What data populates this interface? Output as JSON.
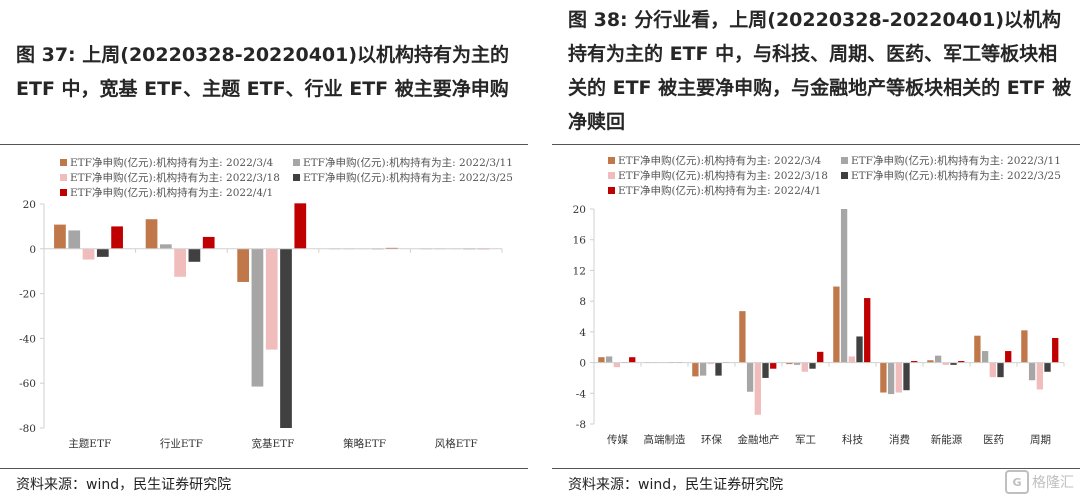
{
  "left": {
    "title": "图 37: 上周(20220328-20220401)以机构持有为主的 ETF 中，宽基 ETF、主题 ETF、行业 ETF 被主要净申购",
    "source": "资料来源：wind，民生证券研究院"
  },
  "right": {
    "title": "图 38: 分行业看，上周(20220328-20220401)以机构持有为主的 ETF 中，与科技、周期、医药、军工等板块相关的  ETF  被主要净申购，与金融地产等板块相关的 ETF 被净赎回",
    "source": "资料来源：wind，民生证券研究院"
  },
  "watermark": {
    "text": "格隆汇",
    "logo": "G"
  },
  "colors": {
    "s1": "#c0784a",
    "s2": "#a6a6a6",
    "s3": "#f0bcbc",
    "s4": "#404040",
    "s5": "#c00000",
    "axis": "#d0d0d0",
    "tick_text": "#333333"
  },
  "chart_data": [
    {
      "type": "bar",
      "categories": [
        "主题ETF",
        "行业ETF",
        "宽基ETF",
        "策略ETF",
        "风格ETF"
      ],
      "series": [
        {
          "name": "ETF净申购(亿元):机构持有为主: 2022/3/4",
          "values": [
            10.8,
            13.2,
            -14.8,
            0.3,
            0.2
          ]
        },
        {
          "name": "ETF净申购(亿元):机构持有为主: 2022/3/11",
          "values": [
            8.2,
            2.0,
            -61.5,
            0.3,
            0.2
          ]
        },
        {
          "name": "ETF净申购(亿元):机构持有为主: 2022/3/18",
          "values": [
            -4.8,
            -12.5,
            -45.0,
            0.2,
            0.1
          ]
        },
        {
          "name": "ETF净申购(亿元):机构持有为主: 2022/3/25",
          "values": [
            -3.6,
            -5.8,
            -80.0,
            0.3,
            0.2
          ]
        },
        {
          "name": "ETF净申购(亿元):机构持有为主: 2022/4/1",
          "values": [
            10.0,
            5.3,
            20.3,
            0.4,
            0.3
          ]
        }
      ],
      "ylim": [
        -80,
        20
      ],
      "yticks": [
        20,
        0,
        -20,
        -40,
        -60,
        -80
      ],
      "legend_position": "top"
    },
    {
      "type": "bar",
      "categories": [
        "传媒",
        "高端制造",
        "环保",
        "金融地产",
        "军工",
        "科技",
        "消费",
        "新能源",
        "医药",
        "周期"
      ],
      "series": [
        {
          "name": "ETF净申购(亿元):机构持有为主: 2022/3/4",
          "values": [
            0.7,
            0.05,
            -1.8,
            6.7,
            -0.2,
            9.9,
            -3.9,
            0.3,
            3.5,
            4.2
          ]
        },
        {
          "name": "ETF净申购(亿元):机构持有为主: 2022/3/11",
          "values": [
            0.8,
            0.05,
            -1.7,
            -3.8,
            -0.3,
            20.0,
            -4.1,
            0.9,
            1.5,
            -2.3
          ]
        },
        {
          "name": "ETF净申购(亿元):机构持有为主: 2022/3/18",
          "values": [
            -0.6,
            -0.05,
            -0.2,
            -6.8,
            -1.2,
            0.8,
            -3.9,
            -0.3,
            -1.9,
            -3.5
          ]
        },
        {
          "name": "ETF净申购(亿元):机构持有为主: 2022/3/25",
          "values": [
            0.1,
            0.05,
            -1.7,
            -2.0,
            -0.8,
            3.4,
            -3.6,
            -0.3,
            -1.9,
            -1.2
          ]
        },
        {
          "name": "ETF净申购(亿元):机构持有为主: 2022/4/1",
          "values": [
            0.7,
            0.05,
            0.1,
            -0.8,
            1.4,
            8.4,
            0.2,
            0.2,
            1.5,
            3.2
          ]
        }
      ],
      "ylim": [
        -8,
        20
      ],
      "yticks": [
        20,
        16,
        12,
        8,
        4,
        0,
        -4,
        -8
      ],
      "legend_position": "top"
    }
  ]
}
